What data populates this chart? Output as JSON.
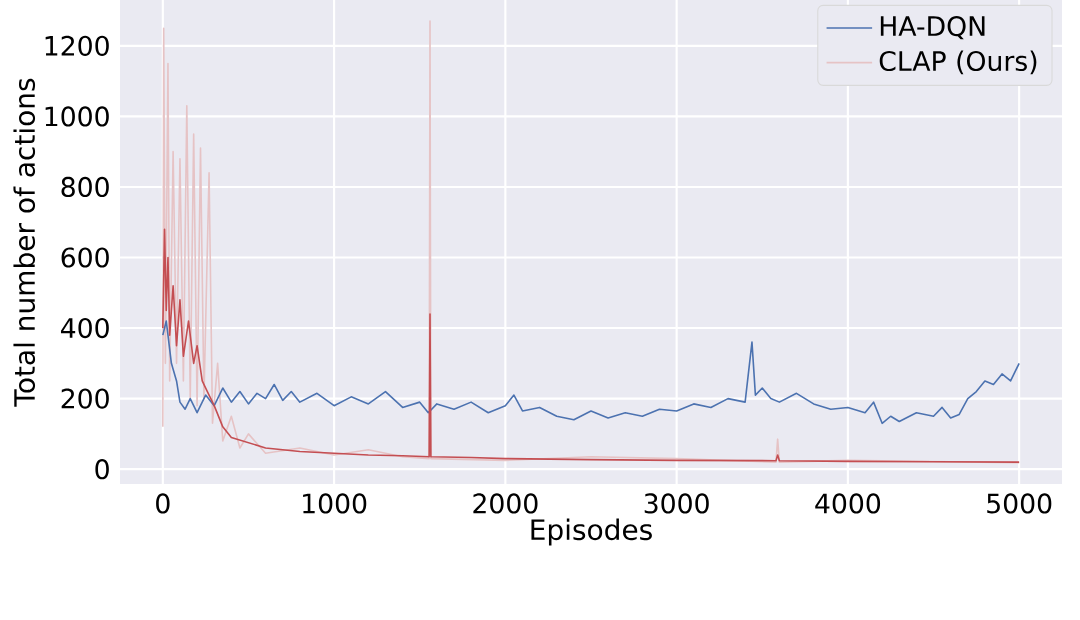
{
  "chart_data": {
    "type": "line",
    "xlabel": "Episodes",
    "ylabel": "Total number of actions",
    "xlim": [
      -250,
      5250
    ],
    "ylim": [
      -42,
      1330
    ],
    "xticks": [
      0,
      1000,
      2000,
      3000,
      4000,
      5000
    ],
    "yticks": [
      0,
      200,
      400,
      600,
      800,
      1000,
      1200
    ],
    "grid": true,
    "legend": "top right",
    "line_style": "solid",
    "series": [
      {
        "name": "HA-DQN",
        "color": "#4c72b0",
        "x": [
          0,
          20,
          50,
          80,
          100,
          130,
          160,
          200,
          250,
          300,
          350,
          400,
          450,
          500,
          550,
          600,
          650,
          700,
          750,
          800,
          900,
          1000,
          1100,
          1200,
          1300,
          1400,
          1500,
          1550,
          1600,
          1700,
          1800,
          1900,
          2000,
          2050,
          2100,
          2200,
          2300,
          2400,
          2500,
          2600,
          2700,
          2800,
          2900,
          3000,
          3100,
          3200,
          3300,
          3400,
          3440,
          3460,
          3500,
          3550,
          3600,
          3700,
          3800,
          3900,
          4000,
          4100,
          4150,
          4200,
          4250,
          4300,
          4400,
          4500,
          4550,
          4600,
          4650,
          4700,
          4750,
          4800,
          4850,
          4900,
          4950,
          5000
        ],
        "values": [
          380,
          420,
          300,
          250,
          190,
          170,
          200,
          160,
          210,
          180,
          230,
          190,
          220,
          185,
          215,
          200,
          240,
          195,
          220,
          190,
          215,
          180,
          205,
          185,
          220,
          175,
          190,
          160,
          185,
          170,
          190,
          160,
          180,
          210,
          165,
          175,
          150,
          140,
          165,
          145,
          160,
          150,
          170,
          165,
          185,
          175,
          200,
          190,
          360,
          210,
          230,
          200,
          190,
          215,
          185,
          170,
          175,
          160,
          190,
          130,
          150,
          135,
          160,
          150,
          175,
          145,
          155,
          200,
          220,
          250,
          240,
          270,
          250,
          300
        ]
      },
      {
        "name": "CLAP (Ours)",
        "color": "#e6c3c5",
        "x": [
          0,
          5,
          15,
          30,
          40,
          60,
          80,
          100,
          120,
          140,
          160,
          180,
          200,
          220,
          240,
          270,
          290,
          320,
          350,
          400,
          450,
          500,
          600,
          800,
          1000,
          1200,
          1400,
          1555,
          1560,
          1565,
          2000,
          2500,
          3000,
          3580,
          3590,
          3600,
          4000,
          5000
        ],
        "values": [
          120,
          1250,
          300,
          1150,
          250,
          900,
          300,
          880,
          250,
          1030,
          200,
          950,
          180,
          910,
          200,
          840,
          130,
          300,
          80,
          150,
          60,
          100,
          45,
          60,
          40,
          55,
          35,
          30,
          1270,
          30,
          25,
          35,
          30,
          20,
          85,
          20,
          25,
          18
        ]
      },
      {
        "color": "#c44e52",
        "x": [
          0,
          10,
          20,
          30,
          40,
          60,
          80,
          100,
          120,
          150,
          180,
          200,
          230,
          260,
          300,
          350,
          400,
          500,
          600,
          700,
          800,
          1000,
          1200,
          1400,
          1555,
          1560,
          1565,
          1800,
          2000,
          2500,
          3000,
          3580,
          3590,
          3600,
          4000,
          4500,
          5000
        ],
        "values": [
          400,
          680,
          450,
          600,
          380,
          520,
          350,
          480,
          320,
          420,
          300,
          350,
          250,
          220,
          180,
          120,
          90,
          75,
          60,
          55,
          50,
          45,
          40,
          38,
          35,
          440,
          35,
          33,
          30,
          27,
          25,
          24,
          40,
          24,
          22,
          21,
          20
        ]
      }
    ]
  }
}
